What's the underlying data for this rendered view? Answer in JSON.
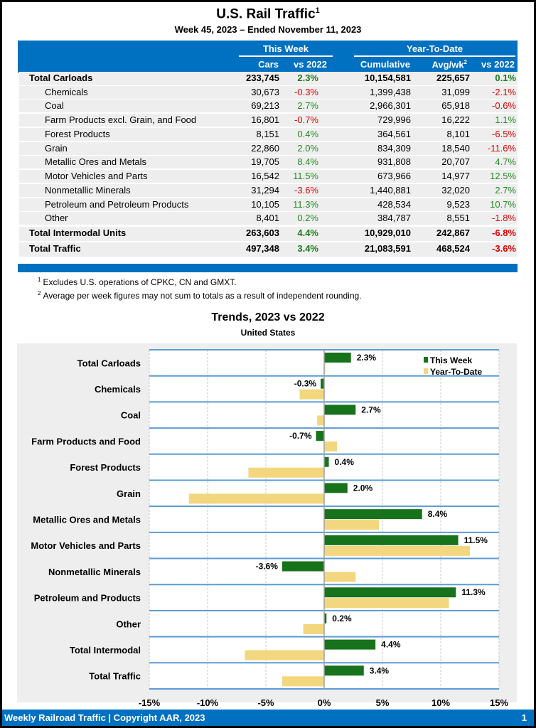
{
  "header": {
    "title": "U.S. Rail Traffic",
    "title_footnote": "1",
    "subtitle": "Week 45, 2023 – Ended November 11, 2023"
  },
  "table": {
    "groups": {
      "this_week": "This Week",
      "ytd": "Year-To-Date"
    },
    "columns": [
      "Cars",
      "vs 2022",
      "Cumulative",
      "Avg/wk",
      "vs 2022"
    ],
    "avg_footnote": "2",
    "rows": [
      {
        "label": "Total Carloads",
        "bold": true,
        "cars": "233,745",
        "tw_vs": "2.3%",
        "cumulative": "10,154,581",
        "avg": "225,657",
        "ytd_vs": "0.1%"
      },
      {
        "label": "Chemicals",
        "bold": false,
        "cars": "30,673",
        "tw_vs": "-0.3%",
        "cumulative": "1,399,438",
        "avg": "31,099",
        "ytd_vs": "-2.1%"
      },
      {
        "label": "Coal",
        "bold": false,
        "cars": "69,213",
        "tw_vs": "2.7%",
        "cumulative": "2,966,301",
        "avg": "65,918",
        "ytd_vs": "-0.6%"
      },
      {
        "label": "Farm Products excl. Grain, and Food",
        "bold": false,
        "cars": "16,801",
        "tw_vs": "-0.7%",
        "cumulative": "729,996",
        "avg": "16,222",
        "ytd_vs": "1.1%"
      },
      {
        "label": "Forest Products",
        "bold": false,
        "cars": "8,151",
        "tw_vs": "0.4%",
        "cumulative": "364,561",
        "avg": "8,101",
        "ytd_vs": "-6.5%"
      },
      {
        "label": "Grain",
        "bold": false,
        "cars": "22,860",
        "tw_vs": "2.0%",
        "cumulative": "834,309",
        "avg": "18,540",
        "ytd_vs": "-11.6%"
      },
      {
        "label": "Metallic Ores and Metals",
        "bold": false,
        "cars": "19,705",
        "tw_vs": "8.4%",
        "cumulative": "931,808",
        "avg": "20,707",
        "ytd_vs": "4.7%"
      },
      {
        "label": "Motor Vehicles and Parts",
        "bold": false,
        "cars": "16,542",
        "tw_vs": "11.5%",
        "cumulative": "673,966",
        "avg": "14,977",
        "ytd_vs": "12.5%"
      },
      {
        "label": "Nonmetallic Minerals",
        "bold": false,
        "cars": "31,294",
        "tw_vs": "-3.6%",
        "cumulative": "1,440,881",
        "avg": "32,020",
        "ytd_vs": "2.7%"
      },
      {
        "label": "Petroleum and Petroleum Products",
        "bold": false,
        "cars": "10,105",
        "tw_vs": "11.3%",
        "cumulative": "428,534",
        "avg": "9,523",
        "ytd_vs": "10.7%"
      },
      {
        "label": "Other",
        "bold": false,
        "cars": "8,401",
        "tw_vs": "0.2%",
        "cumulative": "384,787",
        "avg": "8,551",
        "ytd_vs": "-1.8%"
      },
      {
        "label": "Total Intermodal Units",
        "bold": true,
        "cars": "263,603",
        "tw_vs": "4.4%",
        "cumulative": "10,929,010",
        "avg": "242,867",
        "ytd_vs": "-6.8%"
      },
      {
        "label": "Total Traffic",
        "bold": true,
        "cars": "497,348",
        "tw_vs": "3.4%",
        "cumulative": "21,083,591",
        "avg": "468,524",
        "ytd_vs": "-3.6%"
      }
    ]
  },
  "footnotes": [
    {
      "mark": "1",
      "text": "Excludes U.S. operations of CPKC, CN and GMXT."
    },
    {
      "mark": "2",
      "text": "Average per week figures may not sum to totals as a result of independent rounding."
    }
  ],
  "colors": {
    "brand_blue": "#0070c0",
    "positive": "#228b22",
    "negative": "#e00000",
    "this_week_bar": "#17721c",
    "ytd_bar": "#f2d77e"
  },
  "chart_data": {
    "type": "bar",
    "orientation": "horizontal",
    "title": "Trends, 2023 vs 2022",
    "subtitle": "United States",
    "categories": [
      "Total Carloads",
      "Chemicals",
      "Coal",
      "Farm Products and Food",
      "Forest Products",
      "Grain",
      "Metallic Ores and Metals",
      "Motor Vehicles and Parts",
      "Nonmetallic Minerals",
      "Petroleum and Products",
      "Other",
      "Total Intermodal",
      "Total Traffic"
    ],
    "series": [
      {
        "name": "This Week",
        "values": [
          2.3,
          -0.3,
          2.7,
          -0.7,
          0.4,
          2.0,
          8.4,
          11.5,
          -3.6,
          11.3,
          0.2,
          4.4,
          3.4
        ]
      },
      {
        "name": "Year-To-Date",
        "values": [
          0.1,
          -2.1,
          -0.6,
          1.1,
          -6.5,
          -11.6,
          4.7,
          12.5,
          2.7,
          10.7,
          -1.8,
          -6.8,
          -3.6
        ]
      }
    ],
    "data_labels": [
      "2.3%",
      "-0.3%",
      "2.7%",
      "-0.7%",
      "0.4%",
      "2.0%",
      "8.4%",
      "11.5%",
      "-3.6%",
      "11.3%",
      "0.2%",
      "4.4%",
      "3.4%"
    ],
    "xlim": [
      -15,
      15
    ],
    "xticks": [
      -15,
      -10,
      -5,
      0,
      5,
      10,
      15
    ],
    "xtick_labels": [
      "-15%",
      "-10%",
      "-5%",
      "0%",
      "5%",
      "10%",
      "15%"
    ],
    "xlabel": "",
    "ylabel": "",
    "grid": true,
    "legend": "top-right"
  },
  "footer": {
    "text": "Weekly Railroad Traffic | Copyright AAR, 2023",
    "page": "1"
  }
}
